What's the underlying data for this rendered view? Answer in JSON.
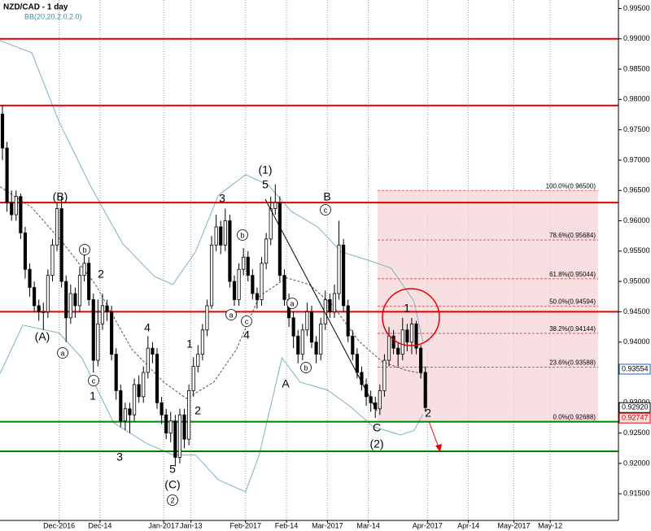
{
  "chart_data": {
    "type": "candlestick",
    "title": "NZD/CAD - 1 day",
    "subtitle": "BB(20,20,2.0,2.0)",
    "ylim": [
      0.9106,
      0.9964
    ],
    "yticks": [
      {
        "value": 0.915,
        "label": "0.91500"
      },
      {
        "value": 0.92,
        "label": "0.92000"
      },
      {
        "value": 0.925,
        "label": "0.92500"
      },
      {
        "value": 0.93,
        "label": "0.93000"
      },
      {
        "value": 0.935,
        "label": "0.93500"
      },
      {
        "value": 0.94,
        "label": "0.94000"
      },
      {
        "value": 0.945,
        "label": "0.94500"
      },
      {
        "value": 0.95,
        "label": "0.95000"
      },
      {
        "value": 0.955,
        "label": "0.95500"
      },
      {
        "value": 0.96,
        "label": "0.96000"
      },
      {
        "value": 0.965,
        "label": "0.96500"
      },
      {
        "value": 0.97,
        "label": "0.97000"
      },
      {
        "value": 0.975,
        "label": "0.97500"
      },
      {
        "value": 0.98,
        "label": "0.98000"
      },
      {
        "value": 0.985,
        "label": "0.98500"
      },
      {
        "value": 0.99,
        "label": "0.99000"
      },
      {
        "value": 0.995,
        "label": "0.99500"
      }
    ],
    "xlim": [
      0,
      136
    ],
    "xticks": [
      {
        "value": 13,
        "label": "Dec-2016"
      },
      {
        "value": 22,
        "label": "Dec-14"
      },
      {
        "value": 36,
        "label": "Jan-2017"
      },
      {
        "value": 42,
        "label": "Jan-13"
      },
      {
        "value": 54,
        "label": "Feb-2017"
      },
      {
        "value": 63,
        "label": "Feb-14"
      },
      {
        "value": 72,
        "label": "Mar-2017"
      },
      {
        "value": 81,
        "label": "Mar-14"
      },
      {
        "value": 94,
        "label": "Apr-2017"
      },
      {
        "value": 103,
        "label": "Apr-14"
      },
      {
        "value": 113,
        "label": "May-2017"
      },
      {
        "value": 121,
        "label": "May-12"
      }
    ],
    "grid": true,
    "up_color": "#ffffff",
    "down_color": "#000000",
    "open": [
      0.9776,
      0.972,
      0.963,
      0.961,
      0.964,
      0.958,
      0.952,
      0.949,
      0.946,
      0.945,
      0.945,
      0.951,
      0.956,
      0.962,
      0.95,
      0.944,
      0.948,
      0.946,
      0.951,
      0.953,
      0.947,
      0.937,
      0.943,
      0.946,
      0.945,
      0.938,
      0.932,
      0.927,
      0.929,
      0.928,
      0.933,
      0.931,
      0.935,
      0.939,
      0.938,
      0.93,
      0.928,
      0.925,
      0.927,
      0.921,
      0.928,
      0.924,
      0.932,
      0.936,
      0.938,
      0.942,
      0.946,
      0.956,
      0.959,
      0.956,
      0.96,
      0.95,
      0.947,
      0.952,
      0.954,
      0.951,
      0.948,
      0.947,
      0.953,
      0.957,
      0.962,
      0.963,
      0.951,
      0.947,
      0.944,
      0.941,
      0.938,
      0.942,
      0.945,
      0.94,
      0.938,
      0.943,
      0.947,
      0.945,
      0.948,
      0.956,
      0.946,
      0.941,
      0.938,
      0.935,
      0.933,
      0.931,
      0.93,
      0.929,
      0.932,
      0.937,
      0.941,
      0.939,
      0.938,
      0.942,
      0.94,
      0.943,
      0.939,
      0.935
    ],
    "high": [
      0.979,
      0.973,
      0.965,
      0.965,
      0.9645,
      0.959,
      0.953,
      0.95,
      0.947,
      0.9465,
      0.952,
      0.957,
      0.963,
      0.964,
      0.951,
      0.9495,
      0.949,
      0.9525,
      0.9545,
      0.954,
      0.948,
      0.947,
      0.948,
      0.947,
      0.946,
      0.939,
      0.933,
      0.93,
      0.93,
      0.934,
      0.9345,
      0.936,
      0.941,
      0.94,
      0.939,
      0.931,
      0.929,
      0.9285,
      0.928,
      0.929,
      0.929,
      0.933,
      0.9375,
      0.9395,
      0.943,
      0.947,
      0.9575,
      0.961,
      0.96,
      0.962,
      0.961,
      0.951,
      0.953,
      0.9555,
      0.955,
      0.952,
      0.949,
      0.954,
      0.958,
      0.964,
      0.966,
      0.964,
      0.952,
      0.948,
      0.945,
      0.942,
      0.943,
      0.9465,
      0.946,
      0.941,
      0.944,
      0.9485,
      0.948,
      0.9495,
      0.96,
      0.957,
      0.947,
      0.942,
      0.939,
      0.936,
      0.934,
      0.932,
      0.931,
      0.933,
      0.938,
      0.9425,
      0.942,
      0.94,
      0.944,
      0.943,
      0.944,
      0.9435,
      0.9395,
      0.936
    ],
    "low": [
      0.97,
      0.9615,
      0.96,
      0.96,
      0.957,
      0.9505,
      0.9475,
      0.945,
      0.9435,
      0.942,
      0.944,
      0.95,
      0.955,
      0.949,
      0.94,
      0.943,
      0.944,
      0.945,
      0.95,
      0.946,
      0.935,
      0.936,
      0.942,
      0.9435,
      0.937,
      0.9305,
      0.926,
      0.9255,
      0.925,
      0.927,
      0.93,
      0.93,
      0.934,
      0.9365,
      0.929,
      0.9265,
      0.924,
      0.9235,
      0.9195,
      0.92,
      0.9225,
      0.923,
      0.931,
      0.935,
      0.937,
      0.941,
      0.9455,
      0.955,
      0.9545,
      0.955,
      0.949,
      0.946,
      0.946,
      0.951,
      0.95,
      0.947,
      0.9455,
      0.946,
      0.952,
      0.956,
      0.961,
      0.95,
      0.946,
      0.9425,
      0.939,
      0.9365,
      0.937,
      0.941,
      0.939,
      0.9365,
      0.937,
      0.942,
      0.944,
      0.944,
      0.947,
      0.945,
      0.94,
      0.937,
      0.934,
      0.932,
      0.9295,
      0.9285,
      0.9275,
      0.928,
      0.931,
      0.936,
      0.938,
      0.936,
      0.937,
      0.9385,
      0.938,
      0.938,
      0.934,
      0.9285
    ],
    "close": [
      0.972,
      0.963,
      0.961,
      0.964,
      0.958,
      0.952,
      0.949,
      0.946,
      0.945,
      0.945,
      0.951,
      0.956,
      0.962,
      0.95,
      0.944,
      0.948,
      0.946,
      0.951,
      0.953,
      0.947,
      0.937,
      0.943,
      0.946,
      0.945,
      0.938,
      0.932,
      0.927,
      0.929,
      0.928,
      0.933,
      0.931,
      0.935,
      0.939,
      0.938,
      0.93,
      0.928,
      0.925,
      0.927,
      0.921,
      0.928,
      0.924,
      0.932,
      0.936,
      0.938,
      0.942,
      0.946,
      0.956,
      0.959,
      0.956,
      0.96,
      0.95,
      0.947,
      0.952,
      0.954,
      0.951,
      0.948,
      0.947,
      0.953,
      0.957,
      0.962,
      0.963,
      0.951,
      0.947,
      0.944,
      0.941,
      0.938,
      0.942,
      0.945,
      0.94,
      0.938,
      0.943,
      0.947,
      0.945,
      0.948,
      0.956,
      0.946,
      0.941,
      0.938,
      0.935,
      0.933,
      0.931,
      0.93,
      0.929,
      0.932,
      0.937,
      0.941,
      0.939,
      0.938,
      0.942,
      0.94,
      0.943,
      0.939,
      0.935,
      0.9292
    ],
    "bands": [
      {
        "color": "#7fb0c4",
        "dash": false,
        "x": [
          0,
          7,
          13,
          20,
          27,
          34,
          38,
          43,
          48,
          54,
          59,
          64,
          70,
          75,
          81,
          86,
          91,
          93
        ],
        "values": [
          0.9897,
          0.9877,
          0.9763,
          0.9656,
          0.9562,
          0.9508,
          0.9495,
          0.9549,
          0.9642,
          0.9676,
          0.9659,
          0.9616,
          0.9589,
          0.9549,
          0.9535,
          0.9522,
          0.9468,
          0.9401
        ]
      },
      {
        "color": "#555555",
        "dash": true,
        "x": [
          0,
          7,
          14,
          21,
          29,
          36,
          41,
          47,
          52,
          57,
          63,
          68,
          73,
          79,
          84,
          89,
          93
        ],
        "values": [
          0.9656,
          0.9622,
          0.9562,
          0.9495,
          0.9388,
          0.9334,
          0.9307,
          0.9334,
          0.9388,
          0.9475,
          0.9506,
          0.9495,
          0.9462,
          0.9401,
          0.9368,
          0.9354,
          0.9348
        ]
      },
      {
        "color": "#7fb0c4",
        "dash": false,
        "x": [
          0,
          5,
          13,
          18,
          25,
          32,
          38,
          43,
          48,
          54,
          57,
          62,
          66,
          72,
          77,
          82,
          88,
          91,
          93
        ],
        "values": [
          0.9348,
          0.9428,
          0.9415,
          0.9374,
          0.9267,
          0.9234,
          0.9214,
          0.9214,
          0.9173,
          0.9153,
          0.9214,
          0.9374,
          0.9334,
          0.9321,
          0.9294,
          0.9261,
          0.9247,
          0.9254,
          0.9281
        ]
      }
    ],
    "hlines": [
      {
        "value": 0.99,
        "color": "#e00000"
      },
      {
        "value": 0.979,
        "color": "#e00000"
      },
      {
        "value": 0.963,
        "color": "#e00000"
      },
      {
        "value": 0.945,
        "color": "#e00000"
      },
      {
        "value": 0.92688,
        "color": "#008000"
      },
      {
        "value": 0.922,
        "color": "#008000"
      }
    ],
    "fib_levels": [
      {
        "label": "100.0%(0.96500)",
        "value": 0.965
      },
      {
        "label": "78.6%(0.95684)",
        "value": 0.95684
      },
      {
        "label": "61.8%(0.95044)",
        "value": 0.95044
      },
      {
        "label": "50.0%(0.94594)",
        "value": 0.94594
      },
      {
        "label": "38.2%(0.94144)",
        "value": 0.94144
      },
      {
        "label": "23.6%(0.93588)",
        "value": 0.93588
      },
      {
        "label": "0.0%(0.92688)",
        "value": 0.92688
      }
    ],
    "price_tags": [
      {
        "label": "0.93554",
        "value": 0.93554,
        "color": "#1f5fbf"
      },
      {
        "label": "0.92920",
        "value": 0.9292,
        "color": "#000000"
      },
      {
        "label": "0.92747",
        "value": 0.92747,
        "color": "#e00000"
      }
    ],
    "annotations": [
      "(B)",
      "(A)",
      "a",
      "b",
      "2",
      "c",
      "1",
      "3",
      "4",
      "1",
      "2",
      "5",
      "(C)",
      "2",
      "3",
      "b",
      "a",
      "c",
      "4",
      "(1)",
      "5",
      "a",
      "A",
      "b",
      "B",
      "c",
      "C",
      "(2)",
      "1",
      "2"
    ]
  }
}
